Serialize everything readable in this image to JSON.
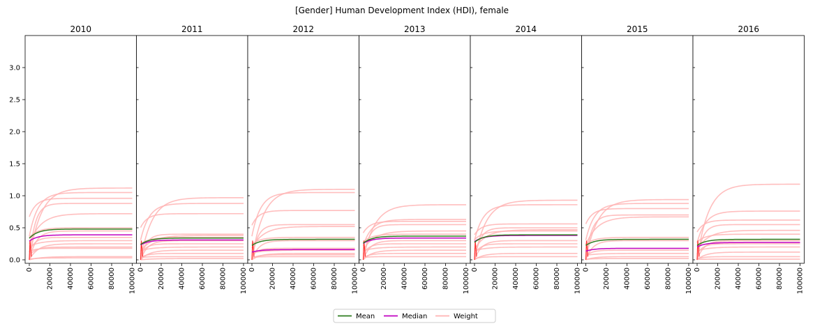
{
  "chart_data": {
    "type": "line",
    "title": "[Gender] Human Development Index (HDI), female",
    "xlabel": "",
    "ylabel": "",
    "xlim": [
      0,
      100000
    ],
    "ylim": [
      0,
      3.5
    ],
    "x_ticks": [
      "0",
      "20000",
      "40000",
      "60000",
      "80000",
      "100000"
    ],
    "y_ticks": [
      "0.0",
      "0.5",
      "1.0",
      "1.5",
      "2.0",
      "2.5",
      "3.0"
    ],
    "legend": {
      "position": "bottom-center",
      "entries": [
        {
          "name": "Mean",
          "color": "#2e7d1f"
        },
        {
          "name": "Median",
          "color": "#c000c0"
        },
        {
          "name": "Weight",
          "color": "#ffb3b3"
        }
      ]
    },
    "facets": [
      {
        "title": "2010",
        "mean": 0.48,
        "median": 0.39,
        "weights": [
          1.12,
          1.05,
          0.96,
          0.88,
          0.72,
          0.5,
          0.45,
          0.35,
          0.3,
          0.25,
          0.2,
          0.18,
          0.05,
          0.03
        ]
      },
      {
        "title": "2011",
        "mean": 0.34,
        "median": 0.31,
        "weights": [
          0.97,
          0.88,
          0.72,
          0.4,
          0.38,
          0.35,
          0.3,
          0.25,
          0.2,
          0.15,
          0.1,
          0.05,
          0.02
        ]
      },
      {
        "title": "2012",
        "mean": 0.32,
        "median": 0.16,
        "weights": [
          1.1,
          1.05,
          0.77,
          0.55,
          0.52,
          0.35,
          0.3,
          0.18,
          0.15,
          0.1,
          0.08,
          0.05
        ]
      },
      {
        "title": "2013",
        "mean": 0.37,
        "median": 0.34,
        "weights": [
          0.86,
          0.63,
          0.6,
          0.55,
          0.45,
          0.4,
          0.3,
          0.25,
          0.2,
          0.15,
          0.1,
          0.05
        ]
      },
      {
        "title": "2014",
        "mean": 0.39,
        "median": 0.38,
        "weights": [
          0.93,
          0.86,
          0.56,
          0.5,
          0.47,
          0.45,
          0.3,
          0.25,
          0.2,
          0.1,
          0.05
        ]
      },
      {
        "title": "2015",
        "mean": 0.32,
        "median": 0.18,
        "weights": [
          0.94,
          0.88,
          0.8,
          0.7,
          0.67,
          0.35,
          0.3,
          0.15,
          0.1,
          0.05,
          0.02
        ]
      },
      {
        "title": "2016",
        "mean": 0.32,
        "median": 0.27,
        "weights": [
          1.18,
          0.76,
          0.62,
          0.55,
          0.46,
          0.4,
          0.3,
          0.25,
          0.2,
          0.12,
          0.05,
          0.01
        ]
      }
    ]
  }
}
